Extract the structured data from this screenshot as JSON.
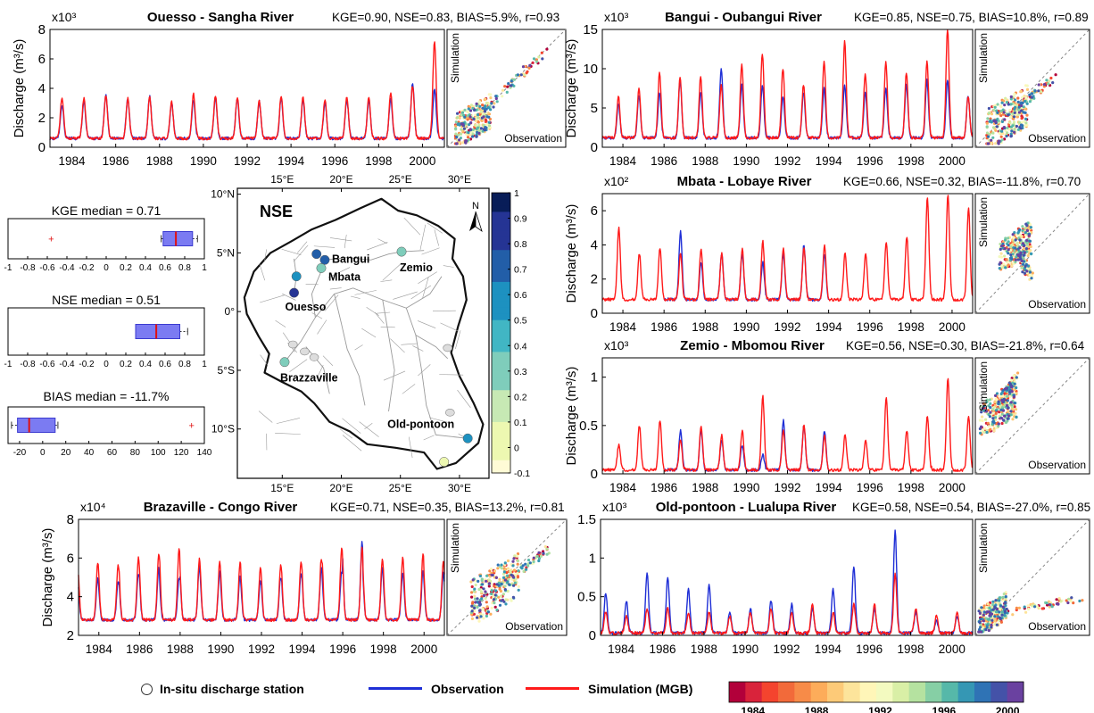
{
  "colors": {
    "observation": "#1f2fd6",
    "simulation": "#ff1a1a",
    "axis": "#000000",
    "river": "#9a9a9a",
    "basin_outline": "#111111",
    "nse_colormap": [
      "#fffbd6",
      "#edf8b1",
      "#c7e9b4",
      "#7fcdbb",
      "#41b6c4",
      "#1d91c0",
      "#225ea8",
      "#253494",
      "#081d58"
    ],
    "year_colormap": [
      "#b2003a",
      "#d9233b",
      "#f4442e",
      "#f26a3a",
      "#f78b48",
      "#fdac5a",
      "#fdca78",
      "#fde49b",
      "#fff6b8",
      "#f3fac0",
      "#d9efa6",
      "#b5e2a0",
      "#86cfa5",
      "#56b8a9",
      "#3597b4",
      "#2f73b5",
      "#4452a8",
      "#6a41a0"
    ]
  },
  "legend": {
    "station_label": "In-situ discharge station",
    "observation_label": "Observation",
    "simulation_label": "Simulation (MGB)",
    "year_ticks": [
      "1984",
      "1988",
      "1992",
      "1996",
      "2000"
    ]
  },
  "scatter_labels": {
    "x": "Observation",
    "y": "Simulation"
  },
  "chart_data": [
    {
      "type": "line",
      "id": "ouesso",
      "title": "Ouesso - Sangha River",
      "metrics": "KGE=0.90, NSE=0.83, BIAS=5.9%, r=0.93",
      "ylabel": "Discharge (m³/s)",
      "multiplier": "x10³",
      "ylim": [
        0,
        8
      ],
      "yticks": [
        0,
        2,
        4,
        6,
        8
      ],
      "xlim": [
        1983,
        2001
      ],
      "xticks": [
        1984,
        1986,
        1988,
        1990,
        1992,
        1994,
        1996,
        1998,
        2000
      ],
      "obs_range": [
        1983,
        2001
      ],
      "base": 0.6,
      "peak_mean": 3.3,
      "peak_var": 0.5,
      "peak_phase": 0.55,
      "series": [
        {
          "name": "Observation",
          "peaks": [
            2.9,
            3.1,
            3.6,
            3.3,
            3.5,
            3.0,
            3.2,
            3.4,
            3.3,
            3.1,
            3.3,
            3.2,
            3.0,
            3.2,
            3.2,
            3.3,
            4.4,
            4.0
          ]
        },
        {
          "name": "Simulation (MGB)",
          "peaks": [
            3.4,
            3.3,
            3.5,
            3.3,
            3.4,
            3.1,
            3.6,
            3.5,
            3.4,
            3.2,
            3.5,
            3.4,
            3.2,
            3.4,
            3.4,
            3.6,
            4.2,
            7.2
          ]
        }
      ]
    },
    {
      "type": "line",
      "id": "bangui",
      "title": "Bangui - Oubangui River",
      "metrics": "KGE=0.85, NSE=0.75, BIAS=10.8%, r=0.89",
      "ylabel": "Discharge (m³/s)",
      "multiplier": "x10³",
      "ylim": [
        0,
        15
      ],
      "yticks": [
        0,
        5,
        10,
        15
      ],
      "xlim": [
        1983,
        2001
      ],
      "xticks": [
        1984,
        1986,
        1988,
        1990,
        1992,
        1994,
        1996,
        1998,
        2000
      ],
      "obs_range": [
        1983,
        2001
      ],
      "base": 1.2,
      "peak_mean": 7.5,
      "peak_var": 1.5,
      "peak_phase": 0.78,
      "series": [
        {
          "name": "Observation",
          "peaks": [
            5.5,
            6.5,
            7.0,
            8.5,
            7.0,
            10.0,
            8.0,
            8.0,
            6.5,
            7.0,
            7.5,
            8.0,
            7.0,
            7.5,
            8.0,
            8.5,
            8.5,
            6.5
          ]
        },
        {
          "name": "Simulation (MGB)",
          "peaks": [
            6.5,
            7.5,
            9.5,
            9.0,
            9.0,
            8.0,
            10.5,
            12.0,
            10.0,
            8.0,
            11.0,
            13.5,
            9.5,
            11.0,
            9.5,
            11.0,
            15.0,
            6.5
          ]
        }
      ]
    },
    {
      "type": "line",
      "id": "mbata",
      "title": "Mbata - Lobaye River",
      "metrics": "KGE=0.66, NSE=0.32, BIAS=-11.8%, r=0.70",
      "ylabel": "Discharge (m³/s)",
      "multiplier": "x10²",
      "ylim": [
        0,
        7
      ],
      "yticks": [
        0,
        2,
        4,
        6
      ],
      "xlim": [
        1983,
        2001
      ],
      "xticks": [
        1984,
        1986,
        1988,
        1990,
        1992,
        1994,
        1996,
        1998,
        2000
      ],
      "obs_range": [
        1986,
        1994
      ],
      "base": 0.8,
      "peak_mean": 3.5,
      "peak_var": 0.6,
      "peak_phase": 0.8,
      "series": [
        {
          "name": "Observation",
          "peaks": [
            3.5,
            3.5,
            3.5,
            4.8,
            3.0,
            3.5,
            3.5,
            3.0,
            3.5,
            4.0,
            3.5,
            3.0,
            3.5,
            3.5,
            3.5,
            3.5,
            3.5,
            3.5
          ]
        },
        {
          "name": "Simulation (MGB)",
          "peaks": [
            5.0,
            3.5,
            3.8,
            3.5,
            3.8,
            3.5,
            3.8,
            4.2,
            3.8,
            3.8,
            4.0,
            3.5,
            3.5,
            4.2,
            4.5,
            6.8,
            7.0,
            6.2
          ]
        }
      ]
    },
    {
      "type": "line",
      "id": "zemio",
      "title": "Zemio - Mbomou River",
      "metrics": "KGE=0.56, NSE=0.30, BIAS=-21.8%, r=0.64",
      "ylabel": "Discharge (m³/s)",
      "multiplier": "x10³",
      "ylim": [
        0,
        1.2
      ],
      "yticks": [
        0,
        0.5,
        1
      ],
      "xlim": [
        1983,
        2001
      ],
      "xticks": [
        1984,
        1986,
        1988,
        1990,
        1992,
        1994,
        1996,
        1998,
        2000
      ],
      "obs_range": [
        1986,
        1994
      ],
      "base": 0.04,
      "peak_mean": 0.45,
      "peak_var": 0.12,
      "peak_phase": 0.8,
      "series": [
        {
          "name": "Observation",
          "peaks": [
            0.4,
            0.4,
            0.4,
            0.45,
            0.45,
            0.35,
            0.3,
            0.2,
            0.55,
            0.5,
            0.45,
            0.4,
            0.4,
            0.4,
            0.4,
            0.4,
            0.4,
            0.4
          ]
        },
        {
          "name": "Simulation (MGB)",
          "peaks": [
            0.3,
            0.5,
            0.55,
            0.35,
            0.5,
            0.4,
            0.45,
            0.8,
            0.45,
            0.5,
            0.4,
            0.4,
            0.35,
            0.8,
            0.45,
            0.6,
            1.0,
            0.6
          ]
        }
      ]
    },
    {
      "type": "line",
      "id": "brazzaville",
      "title": "Brazaville - Congo River",
      "metrics": "KGE=0.71, NSE=0.35, BIAS=13.2%, r=0.81",
      "ylabel": "Discharge (m³/s)",
      "multiplier": "x10⁴",
      "ylim": [
        2,
        8
      ],
      "yticks": [
        2,
        4,
        6,
        8
      ],
      "xlim": [
        1983,
        2001
      ],
      "xticks": [
        1984,
        1986,
        1988,
        1990,
        1992,
        1994,
        1996,
        1998,
        2000
      ],
      "obs_range": [
        1983,
        2001
      ],
      "base": 2.8,
      "peak_mean": 5.3,
      "peak_var": 0.6,
      "peak_phase": 0.95,
      "series": [
        {
          "name": "Observation",
          "peaks": [
            5.0,
            4.8,
            5.2,
            5.5,
            5.0,
            5.6,
            5.3,
            5.0,
            4.8,
            5.0,
            5.2,
            5.5,
            5.3,
            6.8,
            5.5,
            5.2,
            5.3,
            5.2
          ]
        },
        {
          "name": "Simulation (MGB)",
          "peaks": [
            5.8,
            5.6,
            6.0,
            6.2,
            6.5,
            6.0,
            5.8,
            5.8,
            5.5,
            5.6,
            5.8,
            6.0,
            6.5,
            6.6,
            6.0,
            6.0,
            6.2,
            5.8
          ]
        }
      ]
    },
    {
      "type": "line",
      "id": "oldpontoon",
      "title": "Old-pontoon - Lualupa River",
      "metrics": "KGE=0.58, NSE=0.54, BIAS=-27.0%, r=0.85",
      "ylabel": "",
      "multiplier": "x10³",
      "ylim": [
        0,
        1.5
      ],
      "yticks": [
        0,
        0.5,
        1,
        1.5
      ],
      "xlim": [
        1983,
        2001
      ],
      "xticks": [
        1984,
        1986,
        1988,
        1990,
        1992,
        1994,
        1996,
        1998,
        2000
      ],
      "obs_range": [
        1983,
        2001
      ],
      "base": 0.03,
      "peak_mean": 0.55,
      "peak_var": 0.15,
      "peak_phase": 0.25,
      "series": [
        {
          "name": "Observation",
          "peaks": [
            0.55,
            0.45,
            0.8,
            0.75,
            0.6,
            0.65,
            0.3,
            0.35,
            0.45,
            0.4,
            0.35,
            0.6,
            0.9,
            0.35,
            1.35,
            0.3,
            0.2,
            0.25
          ]
        },
        {
          "name": "Simulation (MGB)",
          "peaks": [
            0.3,
            0.25,
            0.35,
            0.35,
            0.3,
            0.3,
            0.25,
            0.3,
            0.35,
            0.3,
            0.4,
            0.3,
            0.4,
            0.4,
            0.8,
            0.35,
            0.25,
            0.3
          ]
        }
      ]
    },
    {
      "type": "box",
      "id": "kge_box",
      "title": "KGE median = 0.71",
      "xlim": [
        -1,
        1
      ],
      "xticks": [
        "-1",
        "-0.8",
        "-0.6",
        "-0.4",
        "-0.2",
        "0",
        "0.2",
        "0.4",
        "0.6",
        "0.8",
        "1"
      ],
      "q1": 0.58,
      "median": 0.71,
      "q3": 0.88,
      "whisker_low": 0.56,
      "whisker_high": 0.93,
      "outliers": [
        -0.56
      ]
    },
    {
      "type": "box",
      "id": "nse_box",
      "title": "NSE median = 0.51",
      "xlim": [
        -1,
        1
      ],
      "xticks": [
        "-1",
        "-0.8",
        "-0.6",
        "-0.4",
        "-0.2",
        "0",
        "0.2",
        "0.4",
        "0.6",
        "0.8",
        "1"
      ],
      "q1": 0.3,
      "median": 0.51,
      "q3": 0.75,
      "whisker_low": 0.3,
      "whisker_high": 0.83,
      "outliers": []
    },
    {
      "type": "box",
      "id": "bias_box",
      "title": "BIAS median = -11.7%",
      "xlim": [
        -30,
        140
      ],
      "xticks": [
        "-20",
        "0",
        "20",
        "40",
        "60",
        "80",
        "100",
        "120",
        "140"
      ],
      "q1": -21.8,
      "median": -11.7,
      "q3": 10.8,
      "whisker_low": -27.0,
      "whisker_high": 13.2,
      "outliers": [
        129
      ]
    }
  ],
  "map": {
    "title": "NSE",
    "north": "N",
    "lon_ticks": [
      "15°E",
      "20°E",
      "25°E",
      "30°E"
    ],
    "lat_ticks": [
      "10°N",
      "5°N",
      "0°",
      "5°S",
      "10°S"
    ],
    "colorbar_ticks": [
      "1",
      "0.9",
      "0.8",
      "0.7",
      "0.6",
      "0.5",
      "0.4",
      "0.3",
      "0.2",
      "0.1",
      "0",
      "-0.1"
    ],
    "stations": [
      {
        "name": "Bangui",
        "lon": 18.6,
        "lat": 4.4,
        "nse": 0.75
      },
      {
        "name": "",
        "lon": 17.9,
        "lat": 4.9,
        "nse": 0.7
      },
      {
        "name": "Mbata",
        "lon": 18.3,
        "lat": 3.7,
        "nse": 0.32
      },
      {
        "name": "",
        "lon": 16.2,
        "lat": 3.0,
        "nse": 0.65
      },
      {
        "name": "Ouesso",
        "lon": 16.0,
        "lat": 1.6,
        "nse": 0.83
      },
      {
        "name": "Zemio",
        "lon": 25.1,
        "lat": 5.1,
        "nse": 0.3
      },
      {
        "name": "Brazzaville",
        "lon": 15.2,
        "lat": -4.3,
        "nse": 0.35
      },
      {
        "name": "Old-pontoon",
        "lon": 30.7,
        "lat": -10.8,
        "nse": 0.54
      },
      {
        "name": "",
        "lon": 28.7,
        "lat": -12.8,
        "nse": 0.05
      }
    ]
  }
}
